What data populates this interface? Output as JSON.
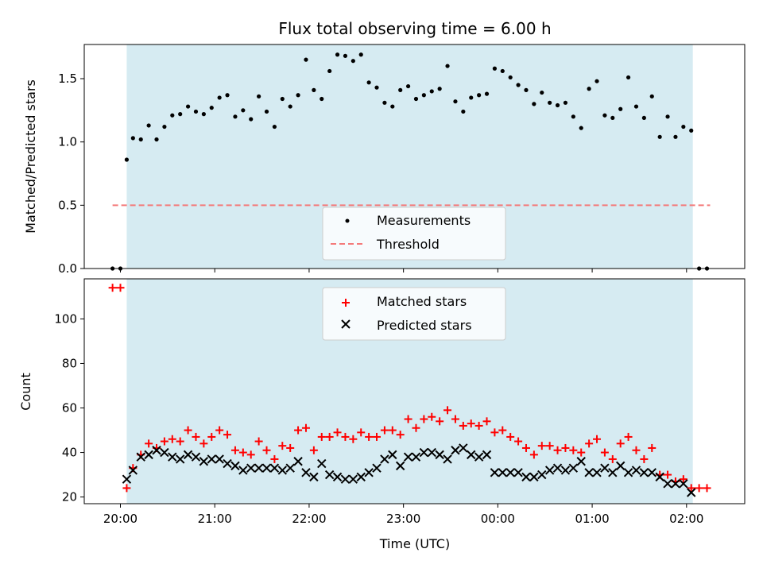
{
  "chart_data": [
    {
      "type": "scatter",
      "title": "Flux total observing time = 6.00 h",
      "xlabel": "",
      "ylabel": "Matched/Predicted stars",
      "xlim": [
        "19:37",
        "02:37"
      ],
      "ylim": [
        0,
        1.77
      ],
      "yticks": [
        "0.0",
        "0.5",
        "1.0",
        "1.5"
      ],
      "shaded_interval": [
        "20:04",
        "02:04"
      ],
      "threshold": 0.5,
      "legend": {
        "position": "lower center",
        "entries": [
          "Measurements",
          "Threshold"
        ]
      },
      "series": [
        {
          "name": "Measurements",
          "marker": "dot",
          "color": "#000000",
          "points": [
            [
              "19:55",
              0.0
            ],
            [
              "20:00",
              0.0
            ],
            [
              "20:04",
              0.86
            ],
            [
              "20:08",
              1.03
            ],
            [
              "20:13",
              1.02
            ],
            [
              "20:18",
              1.13
            ],
            [
              "20:23",
              1.02
            ],
            [
              "20:28",
              1.12
            ],
            [
              "20:33",
              1.21
            ],
            [
              "20:38",
              1.22
            ],
            [
              "20:43",
              1.28
            ],
            [
              "20:48",
              1.24
            ],
            [
              "20:53",
              1.22
            ],
            [
              "20:58",
              1.27
            ],
            [
              "21:03",
              1.35
            ],
            [
              "21:08",
              1.37
            ],
            [
              "21:13",
              1.2
            ],
            [
              "21:18",
              1.25
            ],
            [
              "21:23",
              1.18
            ],
            [
              "21:28",
              1.36
            ],
            [
              "21:33",
              1.24
            ],
            [
              "21:38",
              1.12
            ],
            [
              "21:43",
              1.34
            ],
            [
              "21:48",
              1.28
            ],
            [
              "21:53",
              1.37
            ],
            [
              "21:58",
              1.65
            ],
            [
              "22:03",
              1.41
            ],
            [
              "22:08",
              1.34
            ],
            [
              "22:13",
              1.56
            ],
            [
              "22:18",
              1.69
            ],
            [
              "22:23",
              1.68
            ],
            [
              "22:28",
              1.64
            ],
            [
              "22:33",
              1.69
            ],
            [
              "22:38",
              1.47
            ],
            [
              "22:43",
              1.43
            ],
            [
              "22:48",
              1.31
            ],
            [
              "22:53",
              1.28
            ],
            [
              "22:58",
              1.41
            ],
            [
              "23:03",
              1.44
            ],
            [
              "23:08",
              1.34
            ],
            [
              "23:13",
              1.37
            ],
            [
              "23:18",
              1.4
            ],
            [
              "23:23",
              1.42
            ],
            [
              "23:28",
              1.6
            ],
            [
              "23:33",
              1.32
            ],
            [
              "23:38",
              1.24
            ],
            [
              "23:43",
              1.35
            ],
            [
              "23:48",
              1.37
            ],
            [
              "23:53",
              1.38
            ],
            [
              "23:58",
              1.58
            ],
            [
              "00:03",
              1.56
            ],
            [
              "00:08",
              1.51
            ],
            [
              "00:13",
              1.45
            ],
            [
              "00:18",
              1.41
            ],
            [
              "00:23",
              1.3
            ],
            [
              "00:28",
              1.39
            ],
            [
              "00:33",
              1.31
            ],
            [
              "00:38",
              1.29
            ],
            [
              "00:43",
              1.31
            ],
            [
              "00:48",
              1.2
            ],
            [
              "00:53",
              1.11
            ],
            [
              "00:58",
              1.42
            ],
            [
              "01:03",
              1.48
            ],
            [
              "01:08",
              1.21
            ],
            [
              "01:13",
              1.19
            ],
            [
              "01:18",
              1.26
            ],
            [
              "01:23",
              1.51
            ],
            [
              "01:28",
              1.28
            ],
            [
              "01:33",
              1.19
            ],
            [
              "01:38",
              1.36
            ],
            [
              "01:43",
              1.04
            ],
            [
              "01:48",
              1.2
            ],
            [
              "01:53",
              1.04
            ],
            [
              "01:58",
              1.12
            ],
            [
              "02:03",
              1.09
            ],
            [
              "02:08",
              0.0
            ],
            [
              "02:13",
              0.0
            ]
          ]
        },
        {
          "name": "Threshold",
          "style": "dashed",
          "color": "#f47a7a",
          "value": 0.5
        }
      ]
    },
    {
      "type": "scatter",
      "xlabel": "Time (UTC)",
      "ylabel": "Count",
      "xlim": [
        "19:37",
        "02:37"
      ],
      "ylim": [
        17,
        118
      ],
      "yticks": [
        "20",
        "40",
        "60",
        "80",
        "100"
      ],
      "xticks": [
        "20:00",
        "21:00",
        "22:00",
        "23:00",
        "00:00",
        "01:00",
        "02:00"
      ],
      "shaded_interval": [
        "20:04",
        "02:04"
      ],
      "legend": {
        "position": "upper center",
        "entries": [
          "Matched stars",
          "Predicted stars"
        ]
      },
      "series": [
        {
          "name": "Matched stars",
          "marker": "plus",
          "color": "#ff0000",
          "points": [
            [
              "19:55",
              114
            ],
            [
              "20:00",
              114
            ],
            [
              "20:04",
              24
            ],
            [
              "20:08",
              33
            ],
            [
              "20:13",
              39
            ],
            [
              "20:18",
              44
            ],
            [
              "20:23",
              42
            ],
            [
              "20:28",
              45
            ],
            [
              "20:33",
              46
            ],
            [
              "20:38",
              45
            ],
            [
              "20:43",
              50
            ],
            [
              "20:48",
              47
            ],
            [
              "20:53",
              44
            ],
            [
              "20:58",
              47
            ],
            [
              "21:03",
              50
            ],
            [
              "21:08",
              48
            ],
            [
              "21:13",
              41
            ],
            [
              "21:18",
              40
            ],
            [
              "21:23",
              39
            ],
            [
              "21:28",
              45
            ],
            [
              "21:33",
              41
            ],
            [
              "21:38",
              37
            ],
            [
              "21:43",
              43
            ],
            [
              "21:48",
              42
            ],
            [
              "21:53",
              50
            ],
            [
              "21:58",
              51
            ],
            [
              "22:03",
              41
            ],
            [
              "22:08",
              47
            ],
            [
              "22:13",
              47
            ],
            [
              "22:18",
              49
            ],
            [
              "22:23",
              47
            ],
            [
              "22:28",
              46
            ],
            [
              "22:33",
              49
            ],
            [
              "22:38",
              47
            ],
            [
              "22:43",
              47
            ],
            [
              "22:48",
              50
            ],
            [
              "22:53",
              50
            ],
            [
              "22:58",
              48
            ],
            [
              "23:03",
              55
            ],
            [
              "23:08",
              51
            ],
            [
              "23:13",
              55
            ],
            [
              "23:18",
              56
            ],
            [
              "23:23",
              54
            ],
            [
              "23:28",
              59
            ],
            [
              "23:33",
              55
            ],
            [
              "23:38",
              52
            ],
            [
              "23:43",
              53
            ],
            [
              "23:48",
              52
            ],
            [
              "23:53",
              54
            ],
            [
              "23:58",
              49
            ],
            [
              "00:03",
              50
            ],
            [
              "00:08",
              47
            ],
            [
              "00:13",
              45
            ],
            [
              "00:18",
              42
            ],
            [
              "00:23",
              39
            ],
            [
              "00:28",
              43
            ],
            [
              "00:33",
              43
            ],
            [
              "00:38",
              41
            ],
            [
              "00:43",
              42
            ],
            [
              "00:48",
              41
            ],
            [
              "00:53",
              40
            ],
            [
              "00:58",
              44
            ],
            [
              "01:03",
              46
            ],
            [
              "01:08",
              40
            ],
            [
              "01:13",
              37
            ],
            [
              "01:18",
              44
            ],
            [
              "01:23",
              47
            ],
            [
              "01:28",
              41
            ],
            [
              "01:33",
              37
            ],
            [
              "01:38",
              42
            ],
            [
              "01:43",
              30
            ],
            [
              "01:48",
              30
            ],
            [
              "01:53",
              27
            ],
            [
              "01:58",
              28
            ],
            [
              "02:03",
              24
            ],
            [
              "02:08",
              24
            ],
            [
              "02:13",
              24
            ]
          ]
        },
        {
          "name": "Predicted stars",
          "marker": "x",
          "color": "#000000",
          "points": [
            [
              "20:04",
              28
            ],
            [
              "20:08",
              32
            ],
            [
              "20:13",
              38
            ],
            [
              "20:18",
              39
            ],
            [
              "20:23",
              41
            ],
            [
              "20:28",
              40
            ],
            [
              "20:33",
              38
            ],
            [
              "20:38",
              37
            ],
            [
              "20:43",
              39
            ],
            [
              "20:48",
              38
            ],
            [
              "20:53",
              36
            ],
            [
              "20:58",
              37
            ],
            [
              "21:03",
              37
            ],
            [
              "21:08",
              35
            ],
            [
              "21:13",
              34
            ],
            [
              "21:18",
              32
            ],
            [
              "21:23",
              33
            ],
            [
              "21:28",
              33
            ],
            [
              "21:33",
              33
            ],
            [
              "21:38",
              33
            ],
            [
              "21:43",
              32
            ],
            [
              "21:48",
              33
            ],
            [
              "21:53",
              36
            ],
            [
              "21:58",
              31
            ],
            [
              "22:03",
              29
            ],
            [
              "22:08",
              35
            ],
            [
              "22:13",
              30
            ],
            [
              "22:18",
              29
            ],
            [
              "22:23",
              28
            ],
            [
              "22:28",
              28
            ],
            [
              "22:33",
              29
            ],
            [
              "22:38",
              31
            ],
            [
              "22:43",
              33
            ],
            [
              "22:48",
              37
            ],
            [
              "22:53",
              39
            ],
            [
              "22:58",
              34
            ],
            [
              "23:03",
              38
            ],
            [
              "23:08",
              38
            ],
            [
              "23:13",
              40
            ],
            [
              "23:18",
              40
            ],
            [
              "23:23",
              39
            ],
            [
              "23:28",
              37
            ],
            [
              "23:33",
              41
            ],
            [
              "23:38",
              42
            ],
            [
              "23:43",
              39
            ],
            [
              "23:48",
              38
            ],
            [
              "23:53",
              39
            ],
            [
              "23:58",
              31
            ],
            [
              "00:03",
              31
            ],
            [
              "00:08",
              31
            ],
            [
              "00:13",
              31
            ],
            [
              "00:18",
              29
            ],
            [
              "00:23",
              29
            ],
            [
              "00:28",
              30
            ],
            [
              "00:33",
              32
            ],
            [
              "00:38",
              33
            ],
            [
              "00:43",
              32
            ],
            [
              "00:48",
              33
            ],
            [
              "00:53",
              36
            ],
            [
              "00:58",
              31
            ],
            [
              "01:03",
              31
            ],
            [
              "01:08",
              33
            ],
            [
              "01:13",
              31
            ],
            [
              "01:18",
              34
            ],
            [
              "01:23",
              31
            ],
            [
              "01:28",
              32
            ],
            [
              "01:33",
              31
            ],
            [
              "01:38",
              31
            ],
            [
              "01:43",
              29
            ],
            [
              "01:48",
              26
            ],
            [
              "01:53",
              26
            ],
            [
              "01:58",
              26
            ],
            [
              "02:03",
              22
            ]
          ]
        }
      ]
    }
  ]
}
